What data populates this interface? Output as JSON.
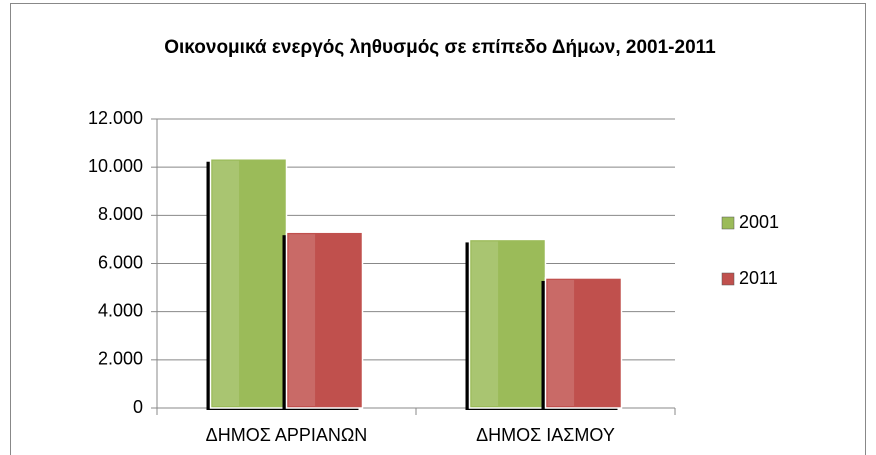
{
  "chart_data": {
    "type": "bar",
    "title": "Οικονομικά ενεργός ληθυσμός σε επίπεδο Δήμων, 2001-2011",
    "categories": [
      "ΔΗΜΟΣ ΑΡΡΙΑΝΩΝ",
      "ΔΗΜΟΣ ΙΑΣΜΟΥ"
    ],
    "series": [
      {
        "name": "2001",
        "color": "#9bbb59",
        "values": [
          10350,
          7000
        ]
      },
      {
        "name": "2011",
        "color": "#c0504d",
        "values": [
          7300,
          5400
        ]
      }
    ],
    "ylim": [
      0,
      12000
    ],
    "yticks": [
      0,
      {
        "value": 2000,
        "label": "2.000"
      },
      {
        "value": 4000,
        "label": "4.000"
      },
      {
        "value": 6000,
        "label": "6.000"
      },
      {
        "value": 8000,
        "label": "8.000"
      },
      {
        "value": 10000,
        "label": "10.000"
      },
      {
        "value": 12000,
        "label": "12.000"
      }
    ],
    "grid": true,
    "legend": "right"
  }
}
